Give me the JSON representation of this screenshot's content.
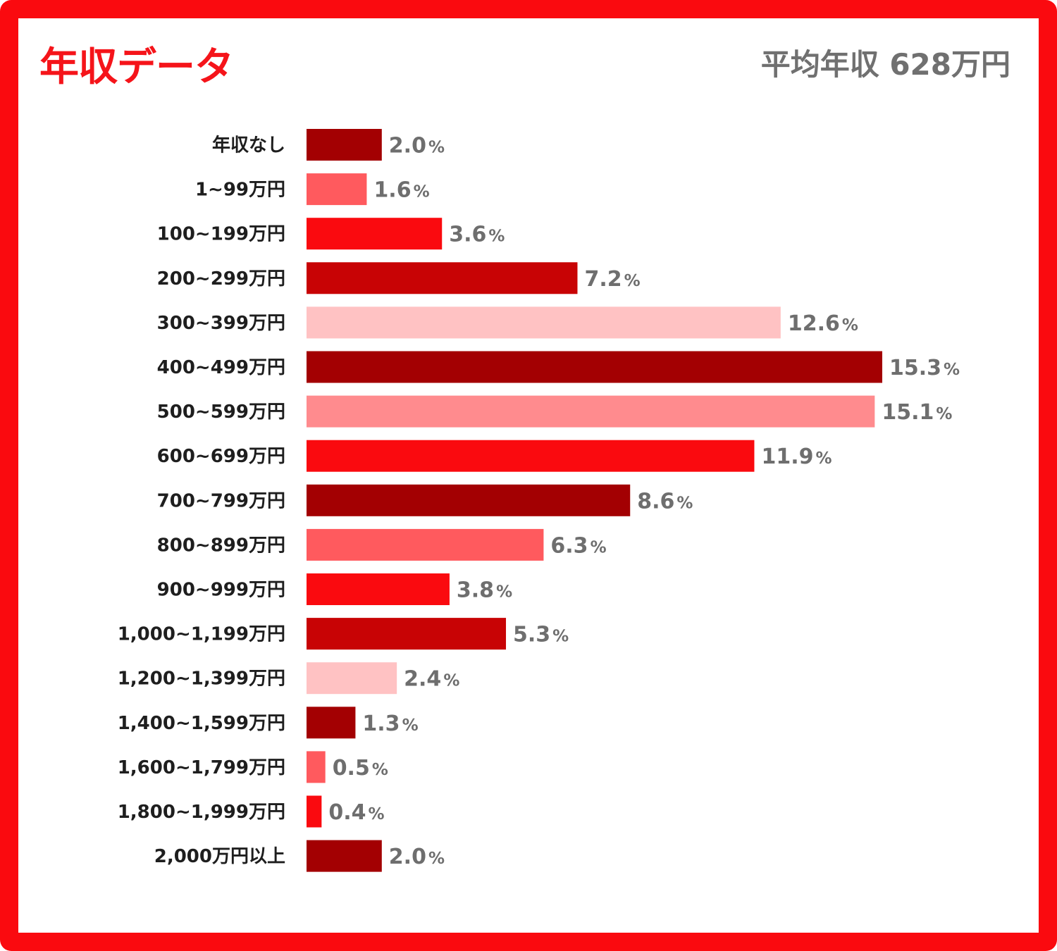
{
  "header": {
    "title": "年収データ",
    "average": "平均年収 628万円"
  },
  "colors": {
    "frame": "#fa0a0f",
    "palette": [
      "#a30002",
      "#ff5a5e",
      "#fa0a0f",
      "#c80305",
      "#ffc2c3",
      "#a30002",
      "#ff8b8e",
      "#fa0a0f",
      "#a30002",
      "#ff5a5e",
      "#fa0a0f",
      "#c80305",
      "#ffc2c3",
      "#a30002",
      "#ff5a5e",
      "#fa0a0f",
      "#a30002"
    ]
  },
  "chart_data": {
    "type": "bar",
    "orientation": "horizontal",
    "title": "年収データ",
    "value_unit": "%",
    "categories": [
      "年収なし",
      "1~99万円",
      "100~199万円",
      "200~299万円",
      "300~399万円",
      "400~499万円",
      "500~599万円",
      "600~699万円",
      "700~799万円",
      "800~899万円",
      "900~999万円",
      "1,000~1,199万円",
      "1,200~1,399万円",
      "1,400~1,599万円",
      "1,600~1,799万円",
      "1,800~1,999万円",
      "2,000万円以上"
    ],
    "values": [
      2.0,
      1.6,
      3.6,
      7.2,
      12.6,
      15.3,
      15.1,
      11.9,
      8.6,
      6.3,
      3.8,
      5.3,
      2.4,
      1.3,
      0.5,
      0.4,
      2.0
    ],
    "value_labels": [
      "2.0",
      "1.6",
      "3.6",
      "7.2",
      "12.6",
      "15.3",
      "15.1",
      "11.9",
      "8.6",
      "6.3",
      "3.8",
      "5.3",
      "2.4",
      "1.3",
      "0.5",
      "0.4",
      "2.0"
    ],
    "grid": false,
    "legend": "none"
  }
}
